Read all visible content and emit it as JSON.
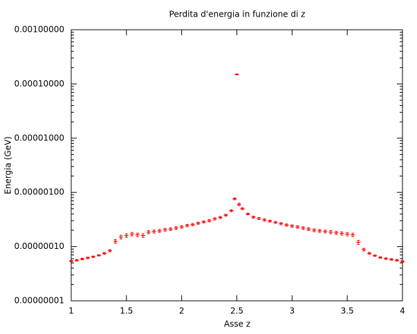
{
  "chart_data": {
    "type": "errorbar",
    "title": "Perdita d'energia in funzione di z",
    "xlabel": "Asse z",
    "ylabel": "Energia (GeV)",
    "color": "#ff0000",
    "ylog": true,
    "x": [
      1.0,
      1.05,
      1.1,
      1.15,
      1.2,
      1.25,
      1.3,
      1.35,
      1.4,
      1.45,
      1.5,
      1.55,
      1.6,
      1.65,
      1.7,
      1.75,
      1.8,
      1.85,
      1.9,
      1.95,
      2.0,
      2.05,
      2.1,
      2.15,
      2.2,
      2.25,
      2.3,
      2.35,
      2.4,
      2.45,
      2.48,
      2.5,
      2.52,
      2.55,
      2.6,
      2.65,
      2.7,
      2.75,
      2.8,
      2.85,
      2.9,
      2.95,
      3.0,
      3.05,
      3.1,
      3.15,
      3.2,
      3.25,
      3.3,
      3.35,
      3.4,
      3.45,
      3.5,
      3.55,
      3.6,
      3.65,
      3.7,
      3.75,
      3.8,
      3.85,
      3.9,
      3.95,
      4.0
    ],
    "values": [
      5.4e-08,
      5.6e-08,
      5.9e-08,
      6.2e-08,
      6.5e-08,
      6.9e-08,
      7.5e-08,
      8.4e-08,
      1.25e-07,
      1.5e-07,
      1.6e-07,
      1.7e-07,
      1.65e-07,
      1.6e-07,
      1.85e-07,
      1.9e-07,
      1.95e-07,
      2.05e-07,
      2.1e-07,
      2.2e-07,
      2.3e-07,
      2.45e-07,
      2.55e-07,
      2.7e-07,
      2.85e-07,
      3e-07,
      3.25e-07,
      3.45e-07,
      3.8e-07,
      4.6e-07,
      7.6e-07,
      0.00015,
      6e-07,
      5e-07,
      4e-07,
      3.5e-07,
      3.3e-07,
      3.1e-07,
      2.95e-07,
      2.8e-07,
      2.65e-07,
      2.5e-07,
      2.4e-07,
      2.3e-07,
      2.2e-07,
      2.1e-07,
      2e-07,
      1.95e-07,
      1.9e-07,
      1.85e-07,
      1.8e-07,
      1.75e-07,
      1.7e-07,
      1.65e-07,
      1.2e-07,
      8.8e-08,
      7.5e-08,
      6.8e-08,
      6.3e-08,
      6e-08,
      5.8e-08,
      5.6e-08,
      5.3e-08
    ],
    "errors": [
      2e-09,
      2e-09,
      2e-09,
      2e-09,
      2e-09,
      2e-09,
      3e-09,
      4e-09,
      1e-08,
      1.2e-08,
      1.2e-08,
      1.2e-08,
      1.2e-08,
      1.2e-08,
      1.2e-08,
      1.2e-08,
      1.2e-08,
      1.2e-08,
      1.2e-08,
      1.2e-08,
      1.2e-08,
      1.2e-08,
      1.2e-08,
      1.2e-08,
      1.2e-08,
      1.5e-08,
      1.5e-08,
      1.5e-08,
      1.5e-08,
      2e-08,
      3e-08,
      3e-06,
      3e-08,
      2e-08,
      1.5e-08,
      1.5e-08,
      1.5e-08,
      1.5e-08,
      1.2e-08,
      1.2e-08,
      1.2e-08,
      1.2e-08,
      1.2e-08,
      1.2e-08,
      1.2e-08,
      1.2e-08,
      1.2e-08,
      1.2e-08,
      1.2e-08,
      1.2e-08,
      1.2e-08,
      1.2e-08,
      1.2e-08,
      1.2e-08,
      1e-08,
      5e-09,
      3e-09,
      2e-09,
      2e-09,
      2e-09,
      2e-09,
      2e-09,
      2e-09
    ],
    "xlim": [
      1,
      4
    ],
    "xticks": [
      1,
      1.5,
      2,
      2.5,
      3,
      3.5,
      4
    ],
    "ylim": [
      1e-08,
      0.001
    ],
    "yticks": [
      {
        "value": 1e-08,
        "label": "0.00000001"
      },
      {
        "value": 1e-07,
        "label": "0.00000010"
      },
      {
        "value": 1e-06,
        "label": "0.00000100"
      },
      {
        "value": 1e-05,
        "label": "0.00001000"
      },
      {
        "value": 0.0001,
        "label": "0.00010000"
      },
      {
        "value": 0.001,
        "label": "0.00100000"
      }
    ]
  }
}
